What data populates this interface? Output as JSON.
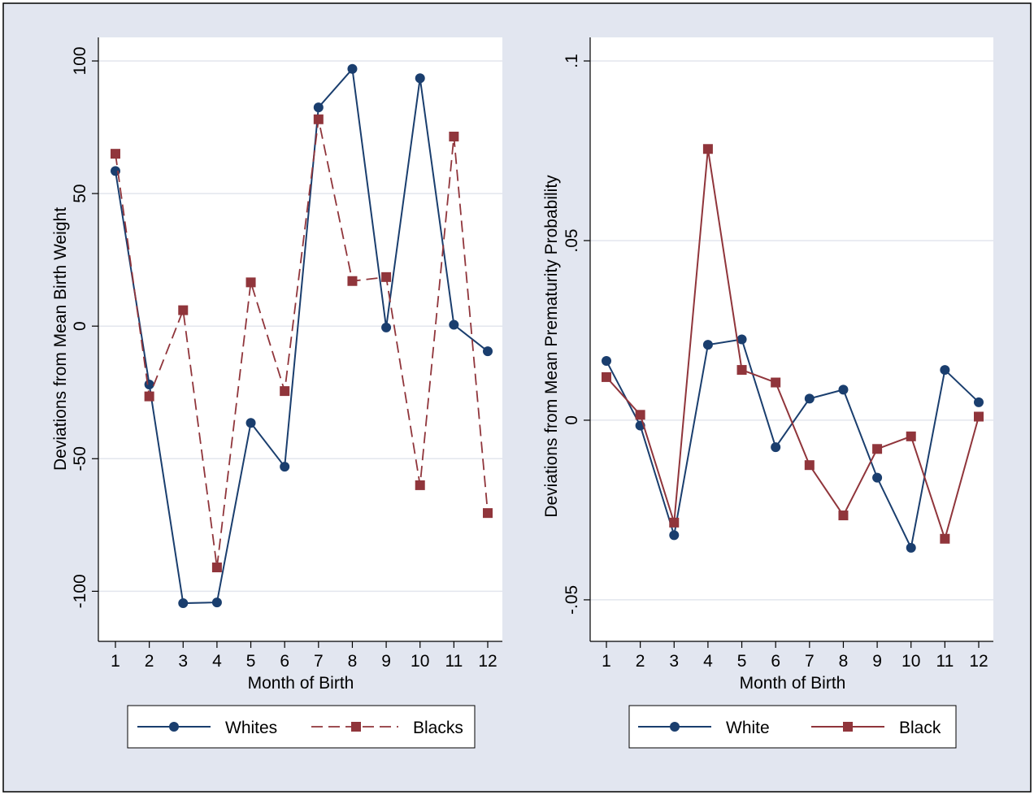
{
  "chart_data": [
    {
      "type": "line",
      "title": "",
      "xlabel": "Month of Birth",
      "ylabel": "Deviations from Mean Birth Weight",
      "x": [
        1,
        2,
        3,
        4,
        5,
        6,
        7,
        8,
        9,
        10,
        11,
        12
      ],
      "x_tick_labels": [
        "1",
        "2",
        "3",
        "4",
        "5",
        "6",
        "7",
        "8",
        "9",
        "10",
        "11",
        "12"
      ],
      "y_ticks": [
        -100,
        -50,
        0,
        50,
        100
      ],
      "y_tick_labels": [
        "-100",
        "-50",
        "0",
        "50",
        "100"
      ],
      "ylim": [
        -110,
        100
      ],
      "grid": true,
      "legend_position": "bottom",
      "series": [
        {
          "name": "Whites",
          "color": "#1a3e6e",
          "marker": "circle",
          "dash": "solid",
          "values": [
            58.5,
            -22,
            -104.5,
            -104.2,
            -36.5,
            -53,
            82.5,
            97,
            -0.5,
            93.5,
            0.5,
            -9.5
          ]
        },
        {
          "name": "Blacks",
          "color": "#90353b",
          "marker": "square",
          "dash": "dashed",
          "values": [
            65,
            -26.5,
            6,
            -91,
            16.5,
            -24.5,
            78,
            17,
            18.5,
            -60,
            71.5,
            -70.5
          ]
        }
      ]
    },
    {
      "type": "line",
      "title": "",
      "xlabel": "Month of Birth",
      "ylabel": "Deviations from Mean Prematurity Probability",
      "x": [
        1,
        2,
        3,
        4,
        5,
        6,
        7,
        8,
        9,
        10,
        11,
        12
      ],
      "x_tick_labels": [
        "1",
        "2",
        "3",
        "4",
        "5",
        "6",
        "7",
        "8",
        "9",
        "10",
        "11",
        "12"
      ],
      "y_ticks": [
        -0.05,
        0,
        0.05,
        0.1
      ],
      "y_tick_labels": [
        "-.05",
        "0",
        ".05",
        ".1"
      ],
      "ylim": [
        -0.055,
        0.1
      ],
      "grid": true,
      "legend_position": "bottom",
      "series": [
        {
          "name": "White",
          "color": "#1a3e6e",
          "marker": "circle",
          "dash": "solid",
          "values": [
            0.0165,
            -0.0015,
            -0.032,
            0.021,
            0.0225,
            -0.0075,
            0.006,
            0.0085,
            -0.016,
            -0.0355,
            0.014,
            0.005
          ]
        },
        {
          "name": "Black",
          "color": "#90353b",
          "marker": "square",
          "dash": "solid",
          "values": [
            0.012,
            0.0015,
            -0.0285,
            0.0755,
            0.014,
            0.0105,
            -0.0125,
            -0.0265,
            -0.008,
            -0.0045,
            -0.033,
            0.001
          ]
        }
      ]
    }
  ]
}
